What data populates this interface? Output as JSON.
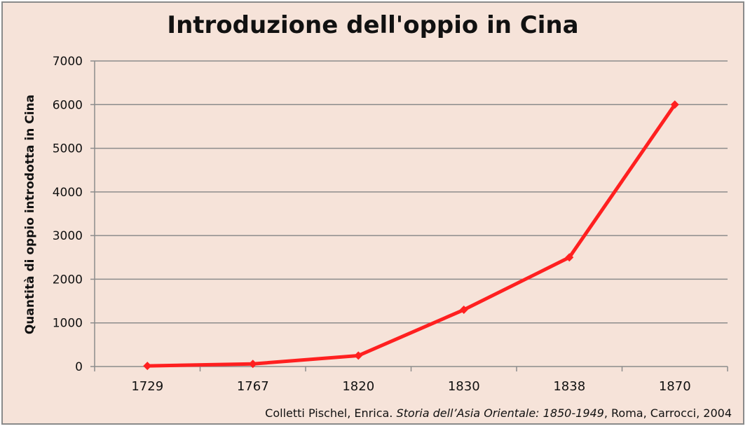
{
  "chart_data": {
    "type": "line",
    "title": "Introduzione dell'oppio in Cina",
    "xlabel": "",
    "ylabel": "Quantità di oppio introdotta in Cina",
    "categories": [
      "1729",
      "1767",
      "1820",
      "1830",
      "1838",
      "1870"
    ],
    "series": [
      {
        "values": [
          15,
          60,
          250,
          1300,
          2500,
          6000
        ],
        "color": "#ff2020"
      }
    ],
    "y_ticks": [
      "0",
      "1000",
      "2000",
      "3000",
      "4000",
      "5000",
      "6000",
      "7000"
    ],
    "ylim": [
      0,
      7000
    ],
    "grid": true,
    "legend": "none"
  },
  "source": {
    "prefix": "Colletti Pischel, Enrica. ",
    "title": "Storia dell’Asia Orientale: 1850-1949",
    "suffix": ", Roma, Carrocci, 2004"
  },
  "colors": {
    "background": "#f6e3d9",
    "gridline": "#8c8c8c",
    "series": "#ff2020"
  }
}
